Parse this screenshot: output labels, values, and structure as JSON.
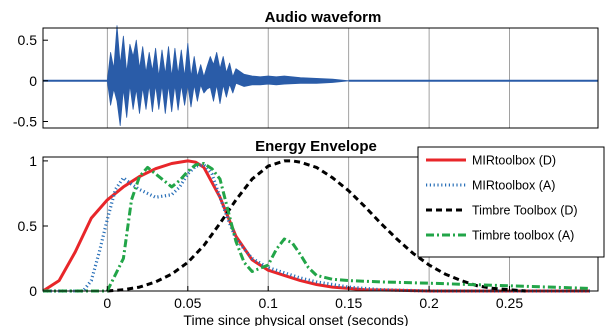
{
  "chart_data": [
    {
      "type": "line",
      "title": "Audio waveform",
      "xlabel": "",
      "ylabel": "",
      "xlim": [
        -0.04,
        0.305
      ],
      "ylim": [
        -0.58,
        0.65
      ],
      "xticks": [
        0,
        0.05,
        0.1,
        0.15,
        0.2,
        0.25
      ],
      "yticks": [
        0.5,
        0,
        -0.5
      ],
      "ytick_labels": [
        "0.5",
        "0",
        "-0.5"
      ],
      "grid": "vertical",
      "series": [
        {
          "color": "#2a5ca8",
          "x": [
            0.0,
            0.002,
            0.004,
            0.006,
            0.008,
            0.01,
            0.012,
            0.014,
            0.016,
            0.018,
            0.02,
            0.022,
            0.024,
            0.026,
            0.028,
            0.03,
            0.032,
            0.034,
            0.036,
            0.038,
            0.04,
            0.042,
            0.044,
            0.046,
            0.048,
            0.05,
            0.052,
            0.054,
            0.056,
            0.058,
            0.06,
            0.062,
            0.064,
            0.066,
            0.068,
            0.07,
            0.072,
            0.074,
            0.076,
            0.078,
            0.08,
            0.085,
            0.09,
            0.095,
            0.1,
            0.105,
            0.11,
            0.12,
            0.13,
            0.14,
            0.15
          ],
          "upper": [
            0.0,
            0.35,
            0.15,
            0.68,
            0.2,
            0.55,
            0.1,
            0.45,
            0.3,
            0.5,
            0.15,
            0.42,
            0.1,
            0.35,
            0.12,
            0.4,
            0.05,
            0.38,
            0.08,
            0.42,
            0.05,
            0.4,
            0.08,
            0.38,
            0.05,
            0.46,
            0.05,
            0.3,
            0.05,
            0.2,
            0.05,
            0.18,
            0.3,
            0.2,
            0.35,
            0.15,
            0.3,
            0.1,
            0.22,
            0.05,
            0.15,
            0.08,
            0.06,
            0.05,
            0.06,
            0.05,
            0.06,
            0.04,
            0.03,
            0.02,
            0.0
          ],
          "lower": [
            0.0,
            -0.3,
            -0.1,
            -0.25,
            -0.55,
            -0.1,
            -0.45,
            -0.05,
            -0.35,
            -0.1,
            -0.4,
            -0.08,
            -0.35,
            -0.05,
            -0.38,
            -0.05,
            -0.35,
            -0.05,
            -0.4,
            -0.05,
            -0.38,
            -0.05,
            -0.36,
            -0.05,
            -0.3,
            -0.05,
            -0.32,
            -0.05,
            -0.25,
            -0.05,
            -0.15,
            -0.1,
            -0.08,
            -0.25,
            -0.05,
            -0.28,
            -0.05,
            -0.2,
            -0.04,
            -0.15,
            -0.03,
            -0.07,
            -0.05,
            -0.05,
            -0.04,
            -0.05,
            -0.04,
            -0.03,
            -0.03,
            -0.02,
            0.0
          ]
        }
      ]
    },
    {
      "type": "line",
      "title": "Energy Envelope",
      "xlabel": "Time since physical onset (seconds)",
      "ylabel": "",
      "xlim": [
        -0.04,
        0.305
      ],
      "ylim": [
        0,
        1.03
      ],
      "xticks": [
        0,
        0.05,
        0.1,
        0.15,
        0.2,
        0.25
      ],
      "xtick_labels": [
        "0",
        "0.05",
        "0.1",
        "0.15",
        "0.2",
        "0.25"
      ],
      "yticks": [
        1,
        0.5,
        0
      ],
      "ytick_labels": [
        "1",
        "0.5",
        "0"
      ],
      "grid": "vertical",
      "legend": "top-right",
      "series": [
        {
          "name": "MIRtoolbox (D)",
          "color": "#e8262a",
          "dash": "solid",
          "x": [
            -0.04,
            -0.03,
            -0.02,
            -0.01,
            0.0,
            0.01,
            0.02,
            0.03,
            0.04,
            0.05,
            0.055,
            0.06,
            0.07,
            0.08,
            0.09,
            0.1,
            0.11,
            0.12,
            0.13,
            0.14,
            0.15,
            0.16,
            0.18,
            0.2,
            0.22,
            0.24,
            0.26,
            0.28,
            0.3
          ],
          "y": [
            0.0,
            0.08,
            0.3,
            0.56,
            0.7,
            0.8,
            0.88,
            0.94,
            0.98,
            1.0,
            0.99,
            0.95,
            0.72,
            0.42,
            0.24,
            0.16,
            0.12,
            0.08,
            0.05,
            0.03,
            0.02,
            0.01,
            0.005,
            0.0,
            0.0,
            0.0,
            0.0,
            0.0,
            0.0
          ]
        },
        {
          "name": "MIRtoolbox (A)",
          "color": "#2a70b8",
          "dash": "dotted",
          "x": [
            -0.04,
            -0.015,
            -0.01,
            -0.005,
            0.0,
            0.005,
            0.01,
            0.015,
            0.02,
            0.03,
            0.04,
            0.045,
            0.05,
            0.055,
            0.06,
            0.065,
            0.07,
            0.075,
            0.08,
            0.09,
            0.1,
            0.11,
            0.12,
            0.13,
            0.14,
            0.15,
            0.17,
            0.2,
            0.25,
            0.3
          ],
          "y": [
            0.0,
            0.0,
            0.08,
            0.3,
            0.55,
            0.78,
            0.87,
            0.82,
            0.78,
            0.72,
            0.74,
            0.8,
            0.9,
            0.96,
            0.97,
            0.9,
            0.72,
            0.55,
            0.4,
            0.25,
            0.18,
            0.14,
            0.1,
            0.07,
            0.05,
            0.03,
            0.01,
            0.0,
            0.0,
            0.0
          ]
        },
        {
          "name": "Timbre Toolbox (D)",
          "color": "#000000",
          "dash": "dashed",
          "x": [
            0.0,
            0.01,
            0.02,
            0.03,
            0.04,
            0.05,
            0.06,
            0.07,
            0.08,
            0.09,
            0.1,
            0.11,
            0.115,
            0.12,
            0.13,
            0.14,
            0.15,
            0.16,
            0.17,
            0.18,
            0.19,
            0.2,
            0.21,
            0.22,
            0.23,
            0.24,
            0.25,
            0.26
          ],
          "y": [
            0.0,
            0.01,
            0.03,
            0.07,
            0.13,
            0.22,
            0.35,
            0.52,
            0.7,
            0.86,
            0.96,
            1.0,
            1.0,
            0.99,
            0.95,
            0.87,
            0.77,
            0.65,
            0.52,
            0.4,
            0.29,
            0.2,
            0.13,
            0.08,
            0.04,
            0.02,
            0.01,
            0.0
          ]
        },
        {
          "name": "Timbre toolbox (A)",
          "color": "#22a548",
          "dash": "dashdot",
          "x": [
            -0.04,
            0.0,
            0.01,
            0.015,
            0.02,
            0.025,
            0.03,
            0.04,
            0.045,
            0.05,
            0.055,
            0.06,
            0.065,
            0.07,
            0.075,
            0.08,
            0.085,
            0.09,
            0.1,
            0.105,
            0.11,
            0.115,
            0.12,
            0.125,
            0.13,
            0.14,
            0.15,
            0.17,
            0.2,
            0.25,
            0.3
          ],
          "y": [
            0.0,
            0.0,
            0.25,
            0.7,
            0.88,
            0.95,
            0.9,
            0.8,
            0.85,
            0.92,
            0.97,
            0.98,
            0.94,
            0.86,
            0.62,
            0.38,
            0.22,
            0.15,
            0.2,
            0.32,
            0.4,
            0.37,
            0.28,
            0.18,
            0.12,
            0.09,
            0.08,
            0.07,
            0.06,
            0.04,
            0.02
          ]
        }
      ]
    }
  ]
}
